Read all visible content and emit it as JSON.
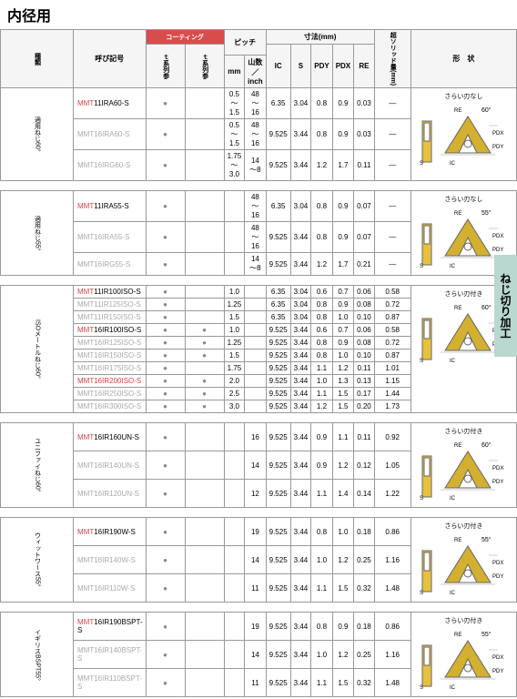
{
  "title": "内径用",
  "sideTab": "ねじ切り加工",
  "headers": {
    "designation": "呼び記号",
    "coating": "コーティング",
    "coat1": "ｔ系列参",
    "coat2": "ｔ系列参",
    "pitch": "ピッチ",
    "pitch_mm": "mm",
    "pitch_inch": "山数／inch",
    "dims": "寸法(mm)",
    "ic": "IC",
    "s": "S",
    "pdy": "PDY",
    "pdx": "PDX",
    "re": "RE",
    "chip": "超ソリッド量(mm)",
    "shape": "形　状"
  },
  "sections": [
    {
      "label": "適用ねじ60°",
      "shapeNote": "さらい刃なし",
      "angle": "60°",
      "rows": [
        {
          "name": "MMT11IRA60-S",
          "g": false,
          "d1": "●",
          "d2": "",
          "mm": "0.5～1.5",
          "inch": "48～16",
          "ic": "6.35",
          "s": "3.04",
          "pdy": "0.8",
          "pdx": "0.9",
          "re": "0.03",
          "chip": "—"
        },
        {
          "name": "MMT16IRA60-S",
          "g": true,
          "d1": "●",
          "d2": "",
          "mm": "0.5～1.5",
          "inch": "48～16",
          "ic": "9.525",
          "s": "3.44",
          "pdy": "0.8",
          "pdx": "0.9",
          "re": "0.03",
          "chip": "—"
        },
        {
          "name": "MMT16IRG60-S",
          "g": true,
          "d1": "●",
          "d2": "",
          "mm": "1.75～3.0",
          "inch": "14～8",
          "ic": "9.525",
          "s": "3.44",
          "pdy": "1.2",
          "pdx": "1.7",
          "re": "0.11",
          "chip": "—"
        }
      ]
    },
    {
      "label": "適用ねじ55°",
      "shapeNote": "さらい刃なし",
      "angle": "55°",
      "rows": [
        {
          "name": "MMT11IRA55-S",
          "g": false,
          "d1": "●",
          "d2": "",
          "mm": "",
          "inch": "48～16",
          "ic": "6.35",
          "s": "3.04",
          "pdy": "0.8",
          "pdx": "0.9",
          "re": "0.07",
          "chip": "—"
        },
        {
          "name": "MMT16IRA55-S",
          "g": true,
          "d1": "●",
          "d2": "",
          "mm": "",
          "inch": "48～16",
          "ic": "9.525",
          "s": "3.44",
          "pdy": "0.8",
          "pdx": "0.9",
          "re": "0.07",
          "chip": "—"
        },
        {
          "name": "MMT16IRG55-S",
          "g": true,
          "d1": "●",
          "d2": "",
          "mm": "",
          "inch": "14～8",
          "ic": "9.525",
          "s": "3.44",
          "pdy": "1.2",
          "pdx": "1.7",
          "re": "0.21",
          "chip": "—"
        }
      ]
    },
    {
      "label": "ISOメートルねじ60°",
      "shapeNote": "さらい刃付き",
      "angle": "60°",
      "rows": [
        {
          "name": "MMT11IR100ISO-S",
          "g": false,
          "d1": "●",
          "d2": "",
          "mm": "1.0",
          "inch": "",
          "ic": "6.35",
          "s": "3.04",
          "pdy": "0.6",
          "pdx": "0.7",
          "re": "0.06",
          "chip": "0.58"
        },
        {
          "name": "MMT11IR125ISO-S",
          "g": true,
          "d1": "●",
          "d2": "",
          "mm": "1.25",
          "inch": "",
          "ic": "6.35",
          "s": "3.04",
          "pdy": "0.8",
          "pdx": "0.9",
          "re": "0.08",
          "chip": "0.72"
        },
        {
          "name": "MMT11IR150ISO-S",
          "g": true,
          "d1": "●",
          "d2": "",
          "mm": "1.5",
          "inch": "",
          "ic": "6.35",
          "s": "3.04",
          "pdy": "0.8",
          "pdx": "1.0",
          "re": "0.10",
          "chip": "0.87"
        },
        {
          "name": "MMT16IR100ISO-S",
          "g": false,
          "d1": "●",
          "d2": "●",
          "mm": "1.0",
          "inch": "",
          "ic": "9.525",
          "s": "3.44",
          "pdy": "0.6",
          "pdx": "0.7",
          "re": "0.06",
          "chip": "0.58"
        },
        {
          "name": "MMT16IR125ISO-S",
          "g": true,
          "d1": "●",
          "d2": "●",
          "mm": "1.25",
          "inch": "",
          "ic": "9.525",
          "s": "3.44",
          "pdy": "0.8",
          "pdx": "0.9",
          "re": "0.08",
          "chip": "0.72"
        },
        {
          "name": "MMT16IR150ISO-S",
          "g": true,
          "d1": "●",
          "d2": "●",
          "mm": "1.5",
          "inch": "",
          "ic": "9.525",
          "s": "3.44",
          "pdy": "0.8",
          "pdx": "1.0",
          "re": "0.10",
          "chip": "0.87"
        },
        {
          "name": "MMT16IR175ISO-S",
          "g": true,
          "d1": "●",
          "d2": "",
          "mm": "1.75",
          "inch": "",
          "ic": "9.525",
          "s": "3.44",
          "pdy": "1.1",
          "pdx": "1.2",
          "re": "0.11",
          "chip": "1.01"
        },
        {
          "name": "MMT16IR200ISO-S",
          "g": false,
          "d1": "●",
          "d2": "●",
          "mm": "2.0",
          "inch": "",
          "ic": "9.525",
          "s": "3.44",
          "pdy": "1.0",
          "pdx": "1.3",
          "re": "0.13",
          "chip": "1.15",
          "r": true
        },
        {
          "name": "MMT16IR250ISO-S",
          "g": true,
          "d1": "●",
          "d2": "●",
          "mm": "2.5",
          "inch": "",
          "ic": "9.525",
          "s": "3.44",
          "pdy": "1.1",
          "pdx": "1.5",
          "re": "0.17",
          "chip": "1.44"
        },
        {
          "name": "MMT16IR300ISO-S",
          "g": true,
          "d1": "●",
          "d2": "●",
          "mm": "3.0",
          "inch": "",
          "ic": "9.525",
          "s": "3.44",
          "pdy": "1.2",
          "pdx": "1.5",
          "re": "0.20",
          "chip": "1.73"
        }
      ]
    },
    {
      "label": "ユニファイねじ60°",
      "shapeNote": "さらい刃付き",
      "angle": "60°",
      "rows": [
        {
          "name": "MMT16IR160UN-S",
          "g": false,
          "d1": "●",
          "d2": "",
          "mm": "",
          "inch": "16",
          "ic": "9.525",
          "s": "3.44",
          "pdy": "0.9",
          "pdx": "1.1",
          "re": "0.11",
          "chip": "0.92"
        },
        {
          "name": "MMT16IR140UN-S",
          "g": true,
          "d1": "●",
          "d2": "",
          "mm": "",
          "inch": "14",
          "ic": "9.525",
          "s": "3.44",
          "pdy": "0.9",
          "pdx": "1.2",
          "re": "0.12",
          "chip": "1.05"
        },
        {
          "name": "MMT16IR120UN-S",
          "g": true,
          "d1": "●",
          "d2": "",
          "mm": "",
          "inch": "12",
          "ic": "9.525",
          "s": "3.44",
          "pdy": "1.1",
          "pdx": "1.4",
          "re": "0.14",
          "chip": "1.22"
        }
      ]
    },
    {
      "label": "ウィットワース55°",
      "shapeNote": "さらい刃付き",
      "angle": "55°",
      "rows": [
        {
          "name": "MMT16IR190W-S",
          "g": false,
          "d1": "●",
          "d2": "",
          "mm": "",
          "inch": "19",
          "ic": "9.525",
          "s": "3.44",
          "pdy": "0.8",
          "pdx": "1.0",
          "re": "0.18",
          "chip": "0.86"
        },
        {
          "name": "MMT16IR140W-S",
          "g": true,
          "d1": "●",
          "d2": "",
          "mm": "",
          "inch": "14",
          "ic": "9.525",
          "s": "3.44",
          "pdy": "1.0",
          "pdx": "1.2",
          "re": "0.25",
          "chip": "1.16"
        },
        {
          "name": "MMT16IR110W-S",
          "g": true,
          "d1": "●",
          "d2": "",
          "mm": "",
          "inch": "11",
          "ic": "9.525",
          "s": "3.44",
          "pdy": "1.1",
          "pdx": "1.5",
          "re": "0.32",
          "chip": "1.48"
        }
      ]
    },
    {
      "label": "イギリスBSPT55°",
      "shapeNote": "さらい刃付き",
      "angle": "55°",
      "rows": [
        {
          "name": "MMT16IR190BSPT-S",
          "g": false,
          "d1": "●",
          "d2": "",
          "mm": "",
          "inch": "19",
          "ic": "9.525",
          "s": "3.44",
          "pdy": "0.8",
          "pdx": "0.9",
          "re": "0.18",
          "chip": "0.86"
        },
        {
          "name": "MMT16IR140BSPT-S",
          "g": true,
          "d1": "●",
          "d2": "",
          "mm": "",
          "inch": "14",
          "ic": "9.525",
          "s": "3.44",
          "pdy": "1.0",
          "pdx": "1.2",
          "re": "0.25",
          "chip": "1.16"
        },
        {
          "name": "MMT16IR110BSPT-S",
          "g": true,
          "d1": "●",
          "d2": "",
          "mm": "",
          "inch": "11",
          "ic": "9.525",
          "s": "3.44",
          "pdy": "1.1",
          "pdx": "1.5",
          "re": "0.32",
          "chip": "1.48"
        }
      ]
    }
  ]
}
